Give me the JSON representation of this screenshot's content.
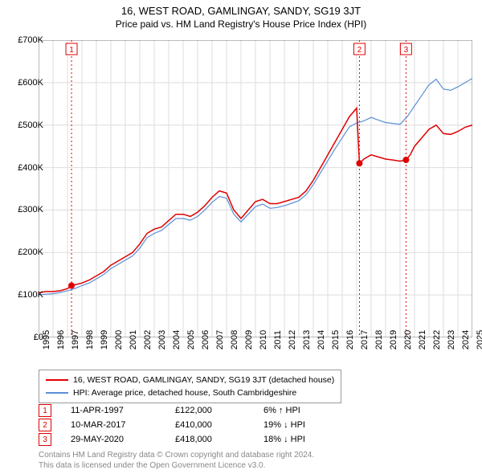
{
  "title": "16, WEST ROAD, GAMLINGAY, SANDY, SG19 3JT",
  "subtitle": "Price paid vs. HM Land Registry's House Price Index (HPI)",
  "chart": {
    "type": "line",
    "background_color": "#ffffff",
    "grid_color": "#dddddd",
    "axis_color": "#777777",
    "ylabel_prefix": "£",
    "ylim": [
      0,
      700000
    ],
    "ytick_step": 100000,
    "yticks": [
      "£0",
      "£100K",
      "£200K",
      "£300K",
      "£400K",
      "£500K",
      "£600K",
      "£700K"
    ],
    "xlim": [
      1995,
      2025
    ],
    "xticks": [
      1995,
      1996,
      1997,
      1998,
      1999,
      2000,
      2001,
      2002,
      2003,
      2004,
      2005,
      2006,
      2007,
      2008,
      2009,
      2010,
      2011,
      2012,
      2013,
      2014,
      2015,
      2016,
      2017,
      2018,
      2019,
      2020,
      2021,
      2022,
      2023,
      2024,
      2025
    ],
    "label_fontsize": 11,
    "series": [
      {
        "name": "16, WEST ROAD, GAMLINGAY, SANDY, SG19 3JT (detached house)",
        "color": "#e00000",
        "line_width": 1.5,
        "data": [
          [
            1995,
            105000
          ],
          [
            1995.5,
            108000
          ],
          [
            1996,
            108000
          ],
          [
            1996.5,
            110000
          ],
          [
            1997,
            115000
          ],
          [
            1997.28,
            122000
          ],
          [
            1998,
            128000
          ],
          [
            1998.5,
            135000
          ],
          [
            1999,
            145000
          ],
          [
            1999.5,
            155000
          ],
          [
            2000,
            170000
          ],
          [
            2000.5,
            180000
          ],
          [
            2001,
            190000
          ],
          [
            2001.5,
            200000
          ],
          [
            2002,
            220000
          ],
          [
            2002.5,
            245000
          ],
          [
            2003,
            255000
          ],
          [
            2003.5,
            260000
          ],
          [
            2004,
            275000
          ],
          [
            2004.5,
            290000
          ],
          [
            2005,
            290000
          ],
          [
            2005.5,
            285000
          ],
          [
            2006,
            295000
          ],
          [
            2006.5,
            310000
          ],
          [
            2007,
            330000
          ],
          [
            2007.5,
            345000
          ],
          [
            2008,
            340000
          ],
          [
            2008.5,
            300000
          ],
          [
            2009,
            280000
          ],
          [
            2009.5,
            300000
          ],
          [
            2010,
            320000
          ],
          [
            2010.5,
            325000
          ],
          [
            2011,
            315000
          ],
          [
            2011.5,
            315000
          ],
          [
            2012,
            320000
          ],
          [
            2012.5,
            325000
          ],
          [
            2013,
            330000
          ],
          [
            2013.5,
            345000
          ],
          [
            2014,
            370000
          ],
          [
            2014.5,
            400000
          ],
          [
            2015,
            430000
          ],
          [
            2015.5,
            460000
          ],
          [
            2016,
            490000
          ],
          [
            2016.5,
            520000
          ],
          [
            2017,
            540000
          ],
          [
            2017.19,
            410000
          ],
          [
            2017.5,
            420000
          ],
          [
            2018,
            430000
          ],
          [
            2018.5,
            425000
          ],
          [
            2019,
            420000
          ],
          [
            2019.5,
            418000
          ],
          [
            2020,
            415000
          ],
          [
            2020.41,
            418000
          ],
          [
            2020.7,
            430000
          ],
          [
            2021,
            450000
          ],
          [
            2021.5,
            470000
          ],
          [
            2022,
            490000
          ],
          [
            2022.5,
            500000
          ],
          [
            2023,
            480000
          ],
          [
            2023.5,
            478000
          ],
          [
            2024,
            485000
          ],
          [
            2024.5,
            495000
          ],
          [
            2025,
            500000
          ]
        ]
      },
      {
        "name": "HPI: Average price, detached house, South Cambridgeshire",
        "color": "#5b8fd6",
        "line_width": 1.2,
        "data": [
          [
            1995,
            100000
          ],
          [
            1995.5,
            102000
          ],
          [
            1996,
            103000
          ],
          [
            1996.5,
            106000
          ],
          [
            1997,
            110000
          ],
          [
            1997.5,
            115000
          ],
          [
            1998,
            122000
          ],
          [
            1998.5,
            128000
          ],
          [
            1999,
            138000
          ],
          [
            1999.5,
            148000
          ],
          [
            2000,
            162000
          ],
          [
            2000.5,
            172000
          ],
          [
            2001,
            182000
          ],
          [
            2001.5,
            192000
          ],
          [
            2002,
            210000
          ],
          [
            2002.5,
            235000
          ],
          [
            2003,
            245000
          ],
          [
            2003.5,
            252000
          ],
          [
            2004,
            266000
          ],
          [
            2004.5,
            280000
          ],
          [
            2005,
            280000
          ],
          [
            2005.5,
            276000
          ],
          [
            2006,
            285000
          ],
          [
            2006.5,
            300000
          ],
          [
            2007,
            318000
          ],
          [
            2007.5,
            332000
          ],
          [
            2008,
            328000
          ],
          [
            2008.5,
            290000
          ],
          [
            2009,
            272000
          ],
          [
            2009.5,
            290000
          ],
          [
            2010,
            308000
          ],
          [
            2010.5,
            314000
          ],
          [
            2011,
            304000
          ],
          [
            2011.5,
            306000
          ],
          [
            2012,
            310000
          ],
          [
            2012.5,
            316000
          ],
          [
            2013,
            322000
          ],
          [
            2013.5,
            336000
          ],
          [
            2014,
            360000
          ],
          [
            2014.5,
            388000
          ],
          [
            2015,
            416000
          ],
          [
            2015.5,
            444000
          ],
          [
            2016,
            470000
          ],
          [
            2016.5,
            496000
          ],
          [
            2017,
            505000
          ],
          [
            2017.5,
            510000
          ],
          [
            2018,
            518000
          ],
          [
            2018.5,
            512000
          ],
          [
            2019,
            506000
          ],
          [
            2019.5,
            504000
          ],
          [
            2020,
            502000
          ],
          [
            2020.5,
            520000
          ],
          [
            2021,
            545000
          ],
          [
            2021.5,
            570000
          ],
          [
            2022,
            595000
          ],
          [
            2022.5,
            608000
          ],
          [
            2023,
            585000
          ],
          [
            2023.5,
            582000
          ],
          [
            2024,
            590000
          ],
          [
            2024.5,
            600000
          ],
          [
            2025,
            610000
          ]
        ]
      }
    ],
    "markers": [
      {
        "n": "1",
        "x": 1997.28,
        "y": 122000,
        "color": "#e00000"
      },
      {
        "n": "2",
        "x": 2017.19,
        "y": 410000,
        "color": "#e00000"
      },
      {
        "n": "3",
        "x": 2020.41,
        "y": 418000,
        "color": "#e00000"
      }
    ]
  },
  "legend": {
    "items": [
      {
        "color": "#e00000",
        "label": "16, WEST ROAD, GAMLINGAY, SANDY, SG19 3JT (detached house)"
      },
      {
        "color": "#5b8fd6",
        "label": "HPI: Average price, detached house, South Cambridgeshire"
      }
    ]
  },
  "marker_rows": [
    {
      "n": "1",
      "color": "#e00000",
      "date": "11-APR-1997",
      "price": "£122,000",
      "diff": "6% ↑ HPI"
    },
    {
      "n": "2",
      "color": "#e00000",
      "date": "10-MAR-2017",
      "price": "£410,000",
      "diff": "19% ↓ HPI"
    },
    {
      "n": "3",
      "color": "#e00000",
      "date": "29-MAY-2020",
      "price": "£418,000",
      "diff": "18% ↓ HPI"
    }
  ],
  "attribution": {
    "line1": "Contains HM Land Registry data © Crown copyright and database right 2024.",
    "line2": "This data is licensed under the Open Government Licence v3.0."
  }
}
